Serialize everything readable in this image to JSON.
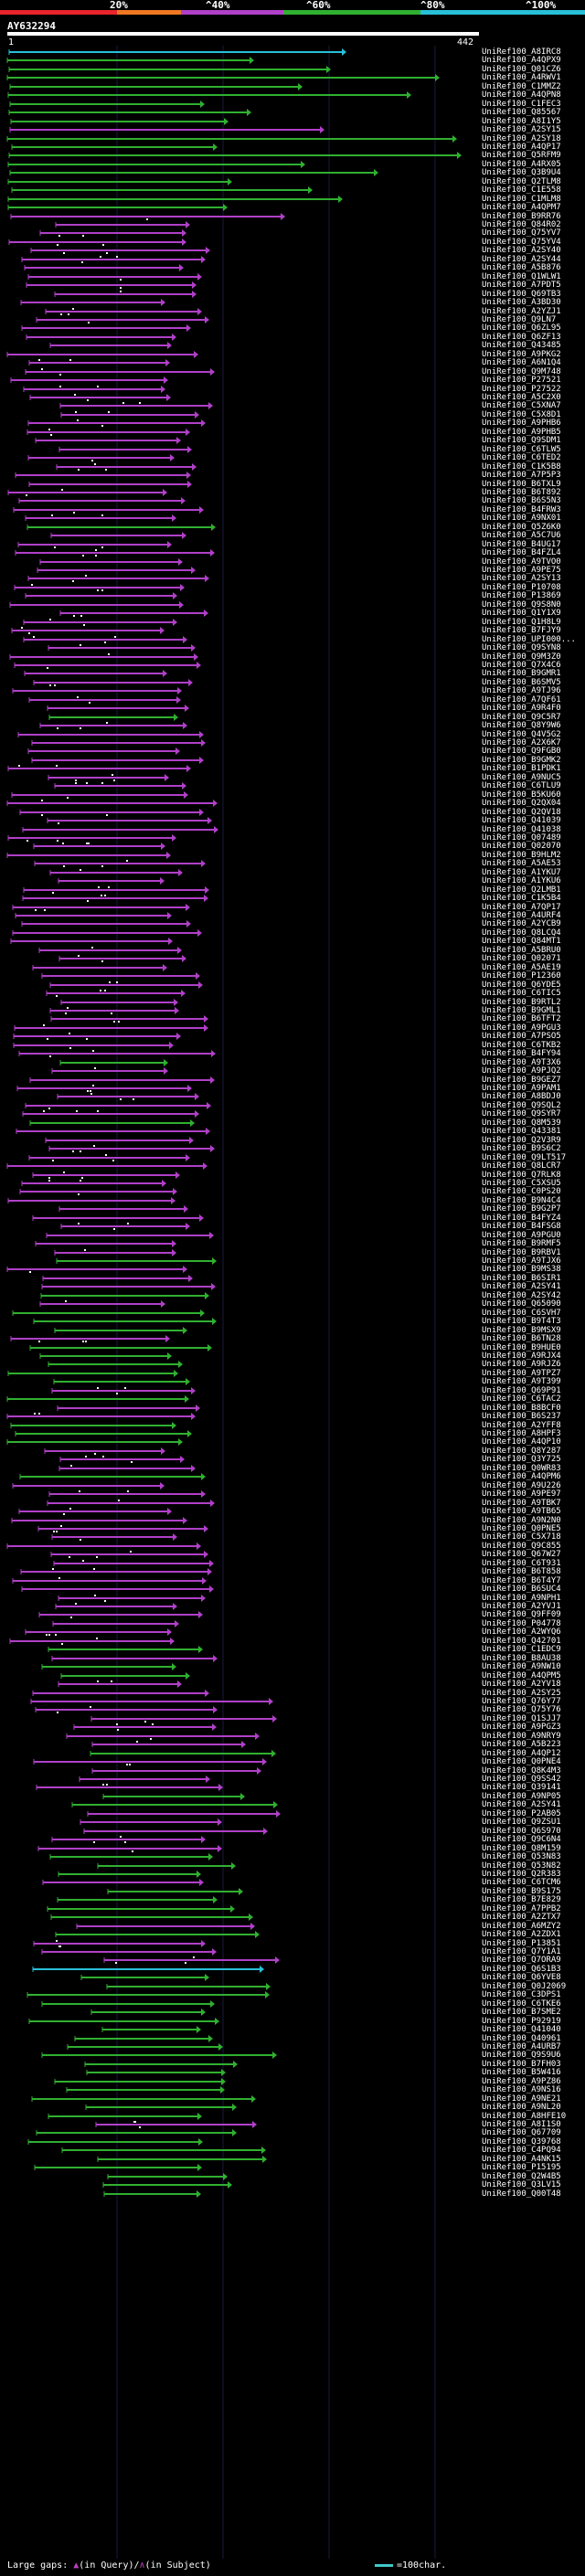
{
  "scale": {
    "labels": [
      "20%",
      "^40%",
      "^60%",
      "^80%",
      "^100%"
    ],
    "colors": [
      "#e8242c",
      "#f07820",
      "#b040c8",
      "#30b030",
      "#28c0d8"
    ]
  },
  "query": {
    "title": "AY632294",
    "start": "1",
    "end": "442"
  },
  "legend": {
    "left_prefix": "Large gaps: ",
    "left_mid": "(in Query)/",
    "left_suffix": "(in Subject)",
    "right": "=100char."
  },
  "hits": [
    {
      "id": "UniRef100_A8IRC8",
      "c": "c"
    },
    {
      "id": "UniRef100_A4QPX9",
      "c": "g"
    },
    {
      "id": "UniRef100_Q01CZ6",
      "c": "g"
    },
    {
      "id": "UniRef100_A4RWV1",
      "c": "g"
    },
    {
      "id": "UniRef100_C1MMZ2",
      "c": "g"
    },
    {
      "id": "UniRef100_A4QPN8",
      "c": "g"
    },
    {
      "id": "UniRef100_C1FEC3",
      "c": "g"
    },
    {
      "id": "UniRef100_Q85567",
      "c": "g"
    },
    {
      "id": "UniRef100_A8I1Y5",
      "c": "g"
    },
    {
      "id": "UniRef100_A2SY15",
      "c": "p"
    },
    {
      "id": "UniRef100_A2SY18",
      "c": "g"
    },
    {
      "id": "UniRef100_A4QP17",
      "c": "g"
    },
    {
      "id": "UniRef100_Q5RFM9",
      "c": "g"
    },
    {
      "id": "UniRef100_A4RX05",
      "c": "g"
    },
    {
      "id": "UniRef100_Q3B9U4",
      "c": "g"
    },
    {
      "id": "UniRef100_Q2TLM8",
      "c": "g"
    },
    {
      "id": "UniRef100_C1E558",
      "c": "g"
    },
    {
      "id": "UniRef100_C1MLM8",
      "c": "g"
    },
    {
      "id": "UniRef100_A4QPM7",
      "c": "g"
    },
    {
      "id": "UniRef100_B9RR76",
      "c": "p"
    },
    {
      "id": "UniRef100_Q84R02",
      "c": "p"
    },
    {
      "id": "UniRef100_Q75YV7",
      "c": "p"
    },
    {
      "id": "UniRef100_Q75YV4",
      "c": "p"
    },
    {
      "id": "UniRef100_A2SY40",
      "c": "p"
    },
    {
      "id": "UniRef100_A2SY44",
      "c": "p"
    },
    {
      "id": "UniRef100_A5B876",
      "c": "p"
    },
    {
      "id": "UniRef100_Q1WLW1",
      "c": "p"
    },
    {
      "id": "UniRef100_A7PDT5",
      "c": "p"
    },
    {
      "id": "UniRef100_Q69TB3",
      "c": "p"
    },
    {
      "id": "UniRef100_A3BD30",
      "c": "p"
    },
    {
      "id": "UniRef100_A2YZJ1",
      "c": "p"
    },
    {
      "id": "UniRef100_Q9LN7",
      "c": "p"
    },
    {
      "id": "UniRef100_Q6ZL95",
      "c": "p"
    },
    {
      "id": "UniRef100_Q6ZF13",
      "c": "p"
    },
    {
      "id": "UniRef100_Q43485",
      "c": "p"
    },
    {
      "id": "UniRef100_A9PKG2",
      "c": "p"
    },
    {
      "id": "UniRef100_A6N1Q4",
      "c": "p"
    },
    {
      "id": "UniRef100_Q9M748",
      "c": "p"
    },
    {
      "id": "UniRef100_P27521",
      "c": "p"
    },
    {
      "id": "UniRef100_P27522",
      "c": "p"
    },
    {
      "id": "UniRef100_A5C2X0",
      "c": "p"
    },
    {
      "id": "UniRef100_C5XNA7",
      "c": "p"
    },
    {
      "id": "UniRef100_C5X8D1",
      "c": "p"
    },
    {
      "id": "UniRef100_A9PHB6",
      "c": "p"
    },
    {
      "id": "UniRef100_A9PHB5",
      "c": "p"
    },
    {
      "id": "UniRef100_Q9SDM1",
      "c": "p"
    },
    {
      "id": "UniRef100_C6TLW5",
      "c": "p"
    },
    {
      "id": "UniRef100_C6TED2",
      "c": "p"
    },
    {
      "id": "UniRef100_C1K5B8",
      "c": "p"
    },
    {
      "id": "UniRef100_A7P5P3",
      "c": "p"
    },
    {
      "id": "UniRef100_B6TXL9",
      "c": "p"
    },
    {
      "id": "UniRef100_B6T892",
      "c": "p"
    },
    {
      "id": "UniRef100_B6S5N3",
      "c": "p"
    },
    {
      "id": "UniRef100_B4FRW3",
      "c": "p"
    },
    {
      "id": "UniRef100_A9NX01",
      "c": "p"
    },
    {
      "id": "UniRef100_Q5Z6K0",
      "c": "g"
    },
    {
      "id": "UniRef100_A5C7U6",
      "c": "p"
    },
    {
      "id": "UniRef100_B4UG17",
      "c": "p"
    },
    {
      "id": "UniRef100_B4FZL4",
      "c": "p"
    },
    {
      "id": "UniRef100_A9TVO0",
      "c": "p"
    },
    {
      "id": "UniRef100_A9PE75",
      "c": "p"
    },
    {
      "id": "UniRef100_A2SY13",
      "c": "p"
    },
    {
      "id": "UniRef100_P10708",
      "c": "p"
    },
    {
      "id": "UniRef100_P13869",
      "c": "p"
    },
    {
      "id": "UniRef100_Q9S8N0",
      "c": "p"
    },
    {
      "id": "UniRef100_Q1Y1X9",
      "c": "p"
    },
    {
      "id": "UniRef100_Q1H8L9",
      "c": "p"
    },
    {
      "id": "UniRef100_B7FJY9",
      "c": "p"
    },
    {
      "id": "UniRef100_UPI000...",
      "c": "p"
    },
    {
      "id": "UniRef100_Q9SYN8",
      "c": "p"
    },
    {
      "id": "UniRef100_Q9M3Z0",
      "c": "p"
    },
    {
      "id": "UniRef100_Q7X4C6",
      "c": "p"
    },
    {
      "id": "UniRef100_B9GMR1",
      "c": "p"
    },
    {
      "id": "UniRef100_B6SMV5",
      "c": "p"
    },
    {
      "id": "UniRef100_A9TJ96",
      "c": "p"
    },
    {
      "id": "UniRef100_A7QF61",
      "c": "p"
    },
    {
      "id": "UniRef100_A9R4F0",
      "c": "p"
    },
    {
      "id": "UniRef100_Q9C5R7",
      "c": "g"
    },
    {
      "id": "UniRef100_Q8Y9W6",
      "c": "p"
    },
    {
      "id": "UniRef100_Q4V5G2",
      "c": "p"
    },
    {
      "id": "UniRef100_A2X6K7",
      "c": "p"
    },
    {
      "id": "UniRef100_Q9FGB0",
      "c": "p"
    },
    {
      "id": "UniRef100_B9GMK2",
      "c": "p"
    },
    {
      "id": "UniRef100_B1PDK1",
      "c": "p"
    },
    {
      "id": "UniRef100_A9NUC5",
      "c": "p"
    },
    {
      "id": "UniRef100_C6TLU9",
      "c": "p"
    },
    {
      "id": "UniRef100_B5KU60",
      "c": "p"
    },
    {
      "id": "UniRef100_Q2QX04",
      "c": "p"
    },
    {
      "id": "UniRef100_Q2QV18",
      "c": "p"
    },
    {
      "id": "UniRef100_Q41039",
      "c": "p"
    },
    {
      "id": "UniRef100_Q41038",
      "c": "p"
    },
    {
      "id": "UniRef100_Q07489",
      "c": "p"
    },
    {
      "id": "UniRef100_Q02070",
      "c": "p"
    },
    {
      "id": "UniRef100_B9HLM2",
      "c": "p"
    },
    {
      "id": "UniRef100_A5AE53",
      "c": "p"
    },
    {
      "id": "UniRef100_A1YKU7",
      "c": "p"
    },
    {
      "id": "UniRef100_A1YKU6",
      "c": "p"
    },
    {
      "id": "UniRef100_Q2LMB1",
      "c": "p"
    },
    {
      "id": "UniRef100_C1K5B4",
      "c": "p"
    },
    {
      "id": "UniRef100_A7QP17",
      "c": "p"
    },
    {
      "id": "UniRef100_A4URF4",
      "c": "p"
    },
    {
      "id": "UniRef100_A2YCB9",
      "c": "p"
    },
    {
      "id": "UniRef100_Q8LCQ4",
      "c": "p"
    },
    {
      "id": "UniRef100_Q84MT1",
      "c": "p"
    },
    {
      "id": "UniRef100_A5BRU0",
      "c": "p"
    },
    {
      "id": "UniRef100_Q02071",
      "c": "p"
    },
    {
      "id": "UniRef100_A5AE19",
      "c": "p"
    },
    {
      "id": "UniRef100_P12360",
      "c": "p"
    },
    {
      "id": "UniRef100_Q6YDE5",
      "c": "p"
    },
    {
      "id": "UniRef100_C6TIC5",
      "c": "p"
    },
    {
      "id": "UniRef100_B9RTL2",
      "c": "p"
    },
    {
      "id": "UniRef100_B9GML1",
      "c": "p"
    },
    {
      "id": "UniRef100_B6TFT2",
      "c": "p"
    },
    {
      "id": "UniRef100_A9PGU3",
      "c": "p"
    },
    {
      "id": "UniRef100_A7PSO5",
      "c": "p"
    },
    {
      "id": "UniRef100_C6TKB2",
      "c": "p"
    },
    {
      "id": "UniRef100_B4FY94",
      "c": "p"
    },
    {
      "id": "UniRef100_A9T3X6",
      "c": "g"
    },
    {
      "id": "UniRef100_A9PJQ2",
      "c": "p"
    },
    {
      "id": "UniRef100_B9GEZ7",
      "c": "p"
    },
    {
      "id": "UniRef100_A9PAM1",
      "c": "p"
    },
    {
      "id": "UniRef100_A8BDJ0",
      "c": "p"
    },
    {
      "id": "UniRef100_Q9SQL2",
      "c": "p"
    },
    {
      "id": "UniRef100_Q9SYR7",
      "c": "p"
    },
    {
      "id": "UniRef100_Q8M539",
      "c": "g"
    },
    {
      "id": "UniRef100_Q43381",
      "c": "p"
    },
    {
      "id": "UniRef100_Q2V3R9",
      "c": "p"
    },
    {
      "id": "UniRef100_B9S6C2",
      "c": "p"
    },
    {
      "id": "UniRef100_Q9LT517",
      "c": "p"
    },
    {
      "id": "UniRef100_Q8LCR7",
      "c": "p"
    },
    {
      "id": "UniRef100_Q7RLK8",
      "c": "p"
    },
    {
      "id": "UniRef100_C5XSU5",
      "c": "p"
    },
    {
      "id": "UniRef100_C0PS20",
      "c": "p"
    },
    {
      "id": "UniRef100_B9N4C4",
      "c": "p"
    },
    {
      "id": "UniRef100_B9G2P7",
      "c": "p"
    },
    {
      "id": "UniRef100_B4FYZ4",
      "c": "p"
    },
    {
      "id": "UniRef100_B4FSG8",
      "c": "p"
    },
    {
      "id": "UniRef100_A9PGU0",
      "c": "p"
    },
    {
      "id": "UniRef100_B9RMF5",
      "c": "p"
    },
    {
      "id": "UniRef100_B9RBV1",
      "c": "p"
    },
    {
      "id": "UniRef100_A9TJX6",
      "c": "g"
    },
    {
      "id": "UniRef100_B9MS38",
      "c": "p"
    },
    {
      "id": "UniRef100_B6SIR1",
      "c": "p"
    },
    {
      "id": "UniRef100_A2SY41",
      "c": "p"
    },
    {
      "id": "UniRef100_A2SY42",
      "c": "g"
    },
    {
      "id": "UniRef100_Q65090",
      "c": "p"
    },
    {
      "id": "UniRef100_C6SVH7",
      "c": "g"
    },
    {
      "id": "UniRef100_B9T4T3",
      "c": "g"
    },
    {
      "id": "UniRef100_B9MSX9",
      "c": "g"
    },
    {
      "id": "UniRef100_B6TN28",
      "c": "p"
    },
    {
      "id": "UniRef100_B9HUE0",
      "c": "g"
    },
    {
      "id": "UniRef100_A9RJX4",
      "c": "g"
    },
    {
      "id": "UniRef100_A9RJZ6",
      "c": "g"
    },
    {
      "id": "UniRef100_A9TPZ7",
      "c": "g"
    },
    {
      "id": "UniRef100_A9T399",
      "c": "g"
    },
    {
      "id": "UniRef100_Q69P91",
      "c": "p"
    },
    {
      "id": "UniRef100_C6TAC2",
      "c": "g"
    },
    {
      "id": "UniRef100_B8BCF0",
      "c": "p"
    },
    {
      "id": "UniRef100_B6S237",
      "c": "p"
    },
    {
      "id": "UniRef100_A2YFF8",
      "c": "g"
    },
    {
      "id": "UniRef100_A8HPF3",
      "c": "g"
    },
    {
      "id": "UniRef100_A4QP10",
      "c": "g"
    },
    {
      "id": "UniRef100_Q8Y287",
      "c": "p"
    },
    {
      "id": "UniRef100_Q3Y725",
      "c": "p"
    },
    {
      "id": "UniRef100_Q0WR83",
      "c": "p"
    },
    {
      "id": "UniRef100_A4QPM6",
      "c": "g"
    },
    {
      "id": "UniRef100_A9U226",
      "c": "p"
    },
    {
      "id": "UniRef100_A9PE97",
      "c": "p"
    },
    {
      "id": "UniRef100_A9TBK7",
      "c": "p"
    },
    {
      "id": "UniRef100_A9TB65",
      "c": "p"
    },
    {
      "id": "UniRef100_A9N2N0",
      "c": "p"
    },
    {
      "id": "UniRef100_Q0PNE5",
      "c": "p"
    },
    {
      "id": "UniRef100_C5X718",
      "c": "p"
    },
    {
      "id": "UniRef100_Q9C855",
      "c": "p"
    },
    {
      "id": "UniRef100_Q67W27",
      "c": "p"
    },
    {
      "id": "UniRef100_C6T931",
      "c": "p"
    },
    {
      "id": "UniRef100_B6T858",
      "c": "p"
    },
    {
      "id": "UniRef100_B6T4Y7",
      "c": "p"
    },
    {
      "id": "UniRef100_B6SUC4",
      "c": "p"
    },
    {
      "id": "UniRef100_A9NPH1",
      "c": "p"
    },
    {
      "id": "UniRef100_A2YVJ1",
      "c": "p"
    },
    {
      "id": "UniRef100_Q9FF09",
      "c": "p"
    },
    {
      "id": "UniRef100_P04778",
      "c": "p"
    },
    {
      "id": "UniRef100_A2WYQ6",
      "c": "p"
    },
    {
      "id": "UniRef100_Q42701",
      "c": "p"
    },
    {
      "id": "UniRef100_C1EDC9",
      "c": "g"
    },
    {
      "id": "UniRef100_B8AU38",
      "c": "p"
    },
    {
      "id": "UniRef100_A9NW10",
      "c": "g"
    },
    {
      "id": "UniRef100_A4QPM5",
      "c": "g"
    },
    {
      "id": "UniRef100_A2YV18",
      "c": "p"
    },
    {
      "id": "UniRef100_A2SY25",
      "c": "p"
    },
    {
      "id": "UniRef100_Q76Y77",
      "c": "p"
    },
    {
      "id": "UniRef100_Q75Y76",
      "c": "p"
    },
    {
      "id": "UniRef100_Q1SJJ7",
      "c": "p"
    },
    {
      "id": "UniRef100_A9PGZ3",
      "c": "p"
    },
    {
      "id": "UniRef100_A9NRY9",
      "c": "p"
    },
    {
      "id": "UniRef100_A5B223",
      "c": "p"
    },
    {
      "id": "UniRef100_A4QP12",
      "c": "g"
    },
    {
      "id": "UniRef100_Q0PNE4",
      "c": "p"
    },
    {
      "id": "UniRef100_Q8K4M3",
      "c": "p"
    },
    {
      "id": "UniRef100_Q9SS42",
      "c": "p"
    },
    {
      "id": "UniRef100_Q39141",
      "c": "p"
    },
    {
      "id": "UniRef100_A9NP05",
      "c": "g"
    },
    {
      "id": "UniRef100_A2SY41",
      "c": "g"
    },
    {
      "id": "UniRef100_P2AB05",
      "c": "p"
    },
    {
      "id": "UniRef100_Q9ZSU1",
      "c": "p"
    },
    {
      "id": "UniRef100_Q6S970",
      "c": "p"
    },
    {
      "id": "UniRef100_Q9C6N4",
      "c": "p"
    },
    {
      "id": "UniRef100_Q8M159",
      "c": "p"
    },
    {
      "id": "UniRef100_Q53N83",
      "c": "g"
    },
    {
      "id": "UniRef100_Q53N82",
      "c": "g"
    },
    {
      "id": "UniRef100_Q2R383",
      "c": "g"
    },
    {
      "id": "UniRef100_C6TCM6",
      "c": "p"
    },
    {
      "id": "UniRef100_B9S175",
      "c": "g"
    },
    {
      "id": "UniRef100_B7E829",
      "c": "g"
    },
    {
      "id": "UniRef100_A7PPB2",
      "c": "g"
    },
    {
      "id": "UniRef100_A2ZTX7",
      "c": "g"
    },
    {
      "id": "UniRef100_A6MZY2",
      "c": "p"
    },
    {
      "id": "UniRef100_A2ZDX1",
      "c": "g"
    },
    {
      "id": "UniRef100_P13851",
      "c": "p"
    },
    {
      "id": "UniRef100_Q7Y1A1",
      "c": "p"
    },
    {
      "id": "UniRef100_Q7ORA9",
      "c": "p"
    },
    {
      "id": "UniRef100_Q6S1B3",
      "c": "c"
    },
    {
      "id": "UniRef100_Q6YVE8",
      "c": "g"
    },
    {
      "id": "UniRef100_Q0J2069",
      "c": "g"
    },
    {
      "id": "UniRef100_C3DPS1",
      "c": "g"
    },
    {
      "id": "UniRef100_C6TKE6",
      "c": "g"
    },
    {
      "id": "UniRef100_B7SME2",
      "c": "g"
    },
    {
      "id": "UniRef100_P92919",
      "c": "g"
    },
    {
      "id": "UniRef100_Q41040",
      "c": "g"
    },
    {
      "id": "UniRef100_Q40961",
      "c": "g"
    },
    {
      "id": "UniRef100_A4URB7",
      "c": "g"
    },
    {
      "id": "UniRef100_Q9S9U6",
      "c": "g"
    },
    {
      "id": "UniRef100_B7FH03",
      "c": "g"
    },
    {
      "id": "UniRef100_B5W416",
      "c": "g"
    },
    {
      "id": "UniRef100_A9PZ86",
      "c": "g"
    },
    {
      "id": "UniRef100_A9NS16",
      "c": "g"
    },
    {
      "id": "UniRef100_A9NE21",
      "c": "g"
    },
    {
      "id": "UniRef100_A9NL20",
      "c": "g"
    },
    {
      "id": "UniRef100_A8HFE10",
      "c": "g"
    },
    {
      "id": "UniRef100_A8I1S0",
      "c": "p"
    },
    {
      "id": "UniRef100_Q67709",
      "c": "g"
    },
    {
      "id": "UniRef100_Q39768",
      "c": "g"
    },
    {
      "id": "UniRef100_C4PQ94",
      "c": "g"
    },
    {
      "id": "UniRef100_A4NK15",
      "c": "g"
    },
    {
      "id": "UniRef100_P15195",
      "c": "g"
    },
    {
      "id": "UniRef100_Q2W4B5",
      "c": "g"
    },
    {
      "id": "UniRef100_Q3LV15",
      "c": "g"
    },
    {
      "id": "UniRef100_Q00T48",
      "c": "g"
    }
  ]
}
